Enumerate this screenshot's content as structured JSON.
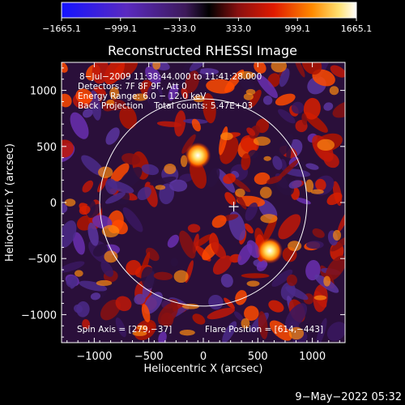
{
  "chart_data": {
    "type": "heatmap",
    "title": "Reconstructed RHESSI Image",
    "xlabel": "Heliocentric X (arcsec)",
    "ylabel": "Heliocentric Y (arcsec)",
    "xlim": [
      -1300,
      1300
    ],
    "ylim": [
      -1250,
      1250
    ],
    "x_ticks": [
      -1000,
      -500,
      0,
      500,
      1000
    ],
    "y_ticks": [
      -1000,
      -500,
      0,
      500,
      1000
    ],
    "x_tick_labels": [
      "−1000",
      "−500",
      "0",
      "500",
      "1000"
    ],
    "y_tick_labels": [
      "−1000",
      "−500",
      "0",
      "500",
      "1000"
    ],
    "colorbar": {
      "min": -1665.1,
      "max": 1665.1,
      "tick_labels": [
        "−1665.1",
        "−999.1",
        "−333.0",
        "333.0",
        "999.1",
        "1665.1"
      ]
    },
    "annotations": {
      "time_range": "8−Jul−2009 11:38:44.000 to 11:41:28.000",
      "detectors": "Detectors: 7F 8F 9F, Att 0",
      "energy_range": "Energy Range: 6.0 − 12.0 keV",
      "method_counts": "Back Projection    Total counts: 5.47E+03",
      "spin_axis": "Spin Axis = [279,−37]",
      "flare_position": "Flare Position = [614,−443]"
    },
    "solar_disk": {
      "center": [
        0,
        0
      ],
      "radius": 950
    },
    "spin_axis": [
      279,
      -37
    ],
    "flare_position": [
      614,
      -443
    ],
    "bright_sources": [
      {
        "x": -50,
        "y": 420,
        "intensity": 1665.1
      },
      {
        "x": 610,
        "y": -430,
        "intensity": 1600
      }
    ],
    "grid": false
  },
  "footer": {
    "plot_date": "9−May−2022 05:32"
  }
}
